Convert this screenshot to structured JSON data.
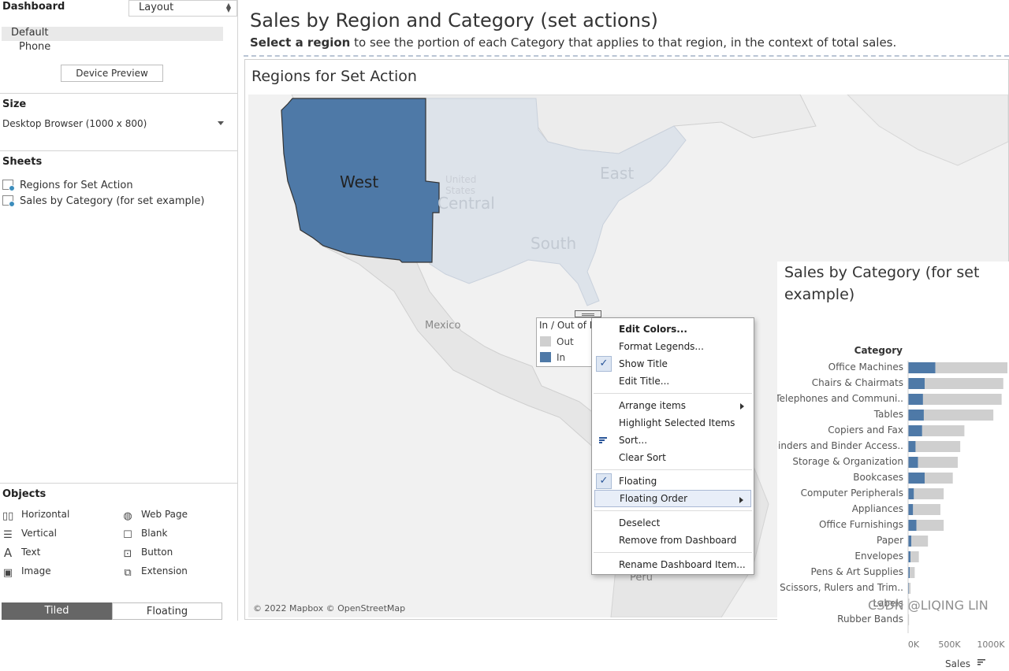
{
  "left_panel": {
    "tab_dashboard": "Dashboard",
    "tab_layout": "Layout",
    "devices": [
      "Default",
      "Phone"
    ],
    "device_preview": "Device Preview",
    "size": {
      "title": "Size",
      "value": "Desktop Browser (1000 x 800)"
    },
    "sheets": {
      "title": "Sheets",
      "items": [
        "Regions for Set Action",
        "Sales by Category (for set example)"
      ]
    },
    "objects": {
      "title": "Objects",
      "items": [
        {
          "label": "Horizontal",
          "icon": "horizontal-container-icon"
        },
        {
          "label": "Web Page",
          "icon": "globe-icon"
        },
        {
          "label": "Vertical",
          "icon": "vertical-container-icon"
        },
        {
          "label": "Blank",
          "icon": "blank-icon"
        },
        {
          "label": "Text",
          "icon": "text-icon"
        },
        {
          "label": "Button",
          "icon": "button-icon"
        },
        {
          "label": "Image",
          "icon": "image-icon"
        },
        {
          "label": "Extension",
          "icon": "extension-icon"
        }
      ]
    },
    "tiled": "Tiled",
    "floating": "Floating"
  },
  "dashboard": {
    "title": "Sales by Region and Category (set actions)",
    "subtitle_bold": "Select a region",
    "subtitle_rest": " to see the portion of each Category that applies to that region, in the context of total sales."
  },
  "map": {
    "title": "Regions for Set Action",
    "regions": {
      "west": "West",
      "central": "Central",
      "east": "East",
      "south": "South"
    },
    "country_labels": {
      "us_line1": "United",
      "us_line2": "States",
      "mexico": "Mexico",
      "peru": "Peru"
    },
    "attribution": "© 2022 Mapbox © OpenStreetMap",
    "colors": {
      "in": "#4e79a7",
      "out_region": "#dde3ea",
      "land": "#e8e8e8",
      "water": "#ffffff"
    }
  },
  "legend": {
    "title": "In / Out of Reg",
    "items": [
      {
        "label": "Out",
        "color": "#cfcfcf"
      },
      {
        "label": "In",
        "color": "#4e79a7"
      }
    ]
  },
  "context_menu": {
    "items": {
      "edit_colors": "Edit Colors...",
      "format_legends": "Format Legends...",
      "show_title": "Show Title",
      "edit_title": "Edit Title...",
      "arrange_items": "Arrange items",
      "highlight_selected": "Highlight Selected Items",
      "sort": "Sort...",
      "clear_sort": "Clear Sort",
      "floating": "Floating",
      "floating_order": "Floating Order",
      "deselect": "Deselect",
      "remove": "Remove from Dashboard",
      "rename": "Rename Dashboard Item..."
    }
  },
  "chart_data": {
    "type": "bar",
    "title": "Sales by Category (for set example)",
    "category_header": "Category",
    "xlabel": "Sales",
    "xlim": [
      0,
      1200000
    ],
    "x_ticks": [
      {
        "value": 0,
        "label": "0K"
      },
      {
        "value": 500000,
        "label": "500K"
      },
      {
        "value": 1000000,
        "label": "1000K"
      }
    ],
    "categories": [
      "Office Machines",
      "Chairs & Chairmats",
      "Telephones and Communi..",
      "Tables",
      "Copiers and Fax",
      "Binders and Binder Access..",
      "Storage & Organization",
      "Bookcases",
      "Computer Peripherals",
      "Appliances",
      "Office Furnishings",
      "Paper",
      "Envelopes",
      "Pens & Art Supplies",
      "Scissors, Rulers and Trim..",
      "Labels",
      "Rubber Bands"
    ],
    "series": [
      {
        "name": "Out",
        "color": "#cfcfcf",
        "values": [
          870000,
          950000,
          950000,
          840000,
          510000,
          540000,
          480000,
          340000,
          360000,
          330000,
          330000,
          200000,
          100000,
          60000,
          20000,
          10000,
          8000
        ]
      },
      {
        "name": "In",
        "color": "#4e79a7",
        "values": [
          330000,
          200000,
          180000,
          190000,
          170000,
          90000,
          120000,
          200000,
          70000,
          60000,
          100000,
          40000,
          30000,
          20000,
          10000,
          5000,
          3000
        ]
      }
    ]
  },
  "watermark": "CSDN @LIQING LIN"
}
